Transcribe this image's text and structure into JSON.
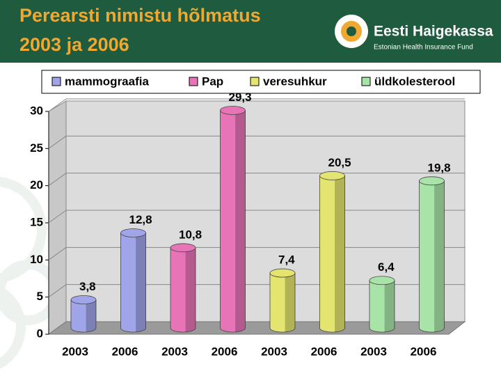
{
  "title_lines": [
    "Perearsti nimistu hõlmatus",
    "2003 ja 2006"
  ],
  "logo": {
    "name": "Eesti Haigekassa",
    "tagline": "Estonian Health Insurance Fund"
  },
  "chart_data": {
    "type": "bar",
    "categories": [
      "2003",
      "2006"
    ],
    "series": [
      {
        "name": "mammograafia",
        "color": "#a0a4e8",
        "values": [
          3.8,
          12.8
        ],
        "value_labels": [
          "3,8",
          "12,8"
        ]
      },
      {
        "name": "Pap",
        "color": "#e874b8",
        "values": [
          10.8,
          29.3
        ],
        "value_labels": [
          "10,8",
          "29,3"
        ]
      },
      {
        "name": "veresuhkur",
        "color": "#e4e470",
        "values": [
          7.4,
          20.5
        ],
        "value_labels": [
          "7,4",
          "20,5"
        ]
      },
      {
        "name": "üldkolesterool",
        "color": "#a8e4a8",
        "values": [
          6.4,
          19.8
        ],
        "value_labels": [
          "6,4",
          "19,8"
        ]
      }
    ],
    "ylim": [
      0,
      30
    ],
    "yticks": [
      0,
      5,
      10,
      15,
      20,
      25,
      30
    ],
    "grid": true,
    "legend": "top"
  }
}
